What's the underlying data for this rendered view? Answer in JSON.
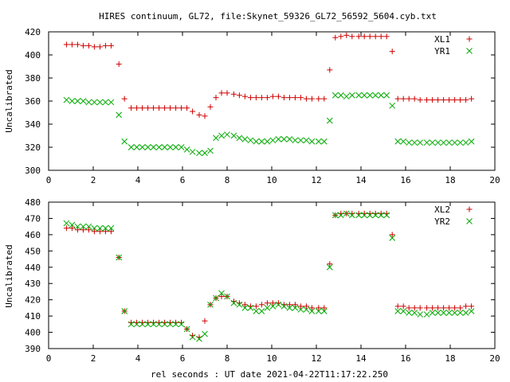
{
  "title": "HIRES continuum, GL72, file:Skynet_59326_GL72_56592_5604.cyb.txt",
  "xlabel": "rel seconds : UT date 2021-04-22T11:17:22.250",
  "chart_data": [
    {
      "type": "scatter",
      "title": "HIRES continuum, GL72, file:Skynet_59326_GL72_56592_5604.cyb.txt",
      "xlabel": "",
      "ylabel": "Uncalibrated",
      "xlim": [
        0,
        20
      ],
      "ylim": [
        300,
        420
      ],
      "xticks": [
        0,
        2,
        4,
        6,
        8,
        10,
        12,
        14,
        16,
        18,
        20
      ],
      "yticks": [
        300,
        320,
        340,
        360,
        380,
        400,
        420
      ],
      "grid": false,
      "legend": "top-right",
      "x": [
        0.8,
        1.05,
        1.3,
        1.55,
        1.8,
        2.05,
        2.3,
        2.55,
        2.8,
        3.15,
        3.4,
        3.7,
        3.95,
        4.2,
        4.45,
        4.7,
        4.95,
        5.2,
        5.45,
        5.7,
        5.95,
        6.2,
        6.45,
        6.75,
        7.0,
        7.25,
        7.5,
        7.75,
        8.0,
        8.3,
        8.55,
        8.8,
        9.05,
        9.3,
        9.55,
        9.8,
        10.05,
        10.3,
        10.55,
        10.8,
        11.05,
        11.3,
        11.55,
        11.8,
        12.1,
        12.35,
        12.6,
        12.85,
        13.1,
        13.35,
        13.6,
        13.9,
        14.15,
        14.4,
        14.65,
        14.9,
        15.15,
        15.4,
        15.65,
        15.9,
        16.15,
        16.4,
        16.65,
        16.95,
        17.2,
        17.45,
        17.7,
        17.95,
        18.2,
        18.45,
        18.7,
        18.95
      ],
      "series": [
        {
          "name": "XL1",
          "color": "#cc0000",
          "marker": "plus",
          "values": [
            409,
            409,
            409,
            408,
            408,
            407,
            407,
            408,
            408,
            392,
            362,
            354,
            354,
            354,
            354,
            354,
            354,
            354,
            354,
            354,
            354,
            354,
            351,
            348,
            347,
            355,
            363,
            367,
            367,
            366,
            365,
            364,
            363,
            363,
            363,
            363,
            364,
            364,
            363,
            363,
            363,
            363,
            362,
            362,
            362,
            362,
            387,
            415,
            416,
            417,
            416,
            416,
            416,
            416,
            416,
            416,
            416,
            403,
            362,
            362,
            362,
            362,
            361,
            361,
            361,
            361,
            361,
            361,
            361,
            361,
            361,
            362
          ]
        },
        {
          "name": "YR1",
          "color": "#00aa00",
          "marker": "x",
          "values": [
            361,
            360,
            360,
            360,
            359,
            359,
            359,
            359,
            359,
            348,
            325,
            320,
            320,
            320,
            320,
            320,
            320,
            320,
            320,
            320,
            320,
            318,
            316,
            315,
            315,
            317,
            328,
            330,
            331,
            330,
            328,
            327,
            326,
            325,
            325,
            325,
            326,
            327,
            327,
            327,
            326,
            326,
            326,
            325,
            325,
            325,
            343,
            365,
            365,
            364,
            365,
            365,
            365,
            365,
            365,
            365,
            365,
            356,
            325,
            325,
            324,
            324,
            324,
            324,
            324,
            324,
            324,
            324,
            324,
            324,
            324,
            325
          ]
        }
      ]
    },
    {
      "type": "scatter",
      "title": "",
      "xlabel": "rel seconds : UT date 2021-04-22T11:17:22.250",
      "ylabel": "Uncalibrated",
      "xlim": [
        0,
        20
      ],
      "ylim": [
        390,
        480
      ],
      "xticks": [
        0,
        2,
        4,
        6,
        8,
        10,
        12,
        14,
        16,
        18,
        20
      ],
      "yticks": [
        390,
        400,
        410,
        420,
        430,
        440,
        450,
        460,
        470,
        480
      ],
      "grid": false,
      "legend": "top-right",
      "x": [
        0.8,
        1.05,
        1.3,
        1.55,
        1.8,
        2.05,
        2.3,
        2.55,
        2.8,
        3.15,
        3.4,
        3.7,
        3.95,
        4.2,
        4.45,
        4.7,
        4.95,
        5.2,
        5.45,
        5.7,
        5.95,
        6.2,
        6.45,
        6.75,
        7.0,
        7.25,
        7.5,
        7.75,
        8.0,
        8.3,
        8.55,
        8.8,
        9.05,
        9.3,
        9.55,
        9.8,
        10.05,
        10.3,
        10.55,
        10.8,
        11.05,
        11.3,
        11.55,
        11.8,
        12.1,
        12.35,
        12.6,
        12.85,
        13.1,
        13.35,
        13.6,
        13.9,
        14.15,
        14.4,
        14.65,
        14.9,
        15.15,
        15.4,
        15.65,
        15.9,
        16.15,
        16.4,
        16.65,
        16.95,
        17.2,
        17.45,
        17.7,
        17.95,
        18.2,
        18.45,
        18.7,
        18.95
      ],
      "series": [
        {
          "name": "XL2",
          "color": "#cc0000",
          "marker": "plus",
          "values": [
            464,
            464,
            463,
            463,
            463,
            462,
            462,
            462,
            462,
            446,
            413,
            406,
            406,
            406,
            406,
            406,
            406,
            406,
            406,
            406,
            406,
            402,
            398,
            397,
            407,
            417,
            421,
            422,
            422,
            419,
            418,
            417,
            416,
            416,
            417,
            418,
            418,
            418,
            417,
            417,
            417,
            416,
            416,
            415,
            415,
            415,
            442,
            472,
            473,
            473,
            473,
            473,
            473,
            473,
            473,
            473,
            473,
            460,
            416,
            416,
            415,
            415,
            415,
            415,
            415,
            415,
            415,
            415,
            415,
            415,
            416,
            416
          ]
        },
        {
          "name": "YR2",
          "color": "#00aa00",
          "marker": "x",
          "values": [
            467,
            466,
            465,
            465,
            465,
            464,
            464,
            464,
            464,
            446,
            413,
            405,
            405,
            405,
            405,
            405,
            405,
            405,
            405,
            405,
            405,
            402,
            397,
            396,
            399,
            417,
            421,
            424,
            422,
            418,
            417,
            415,
            415,
            413,
            413,
            415,
            416,
            417,
            416,
            415,
            415,
            414,
            414,
            413,
            413,
            413,
            440,
            472,
            472,
            473,
            472,
            472,
            472,
            472,
            472,
            472,
            472,
            458,
            413,
            413,
            412,
            412,
            411,
            411,
            412,
            412,
            412,
            412,
            412,
            412,
            412,
            413
          ]
        }
      ]
    }
  ]
}
